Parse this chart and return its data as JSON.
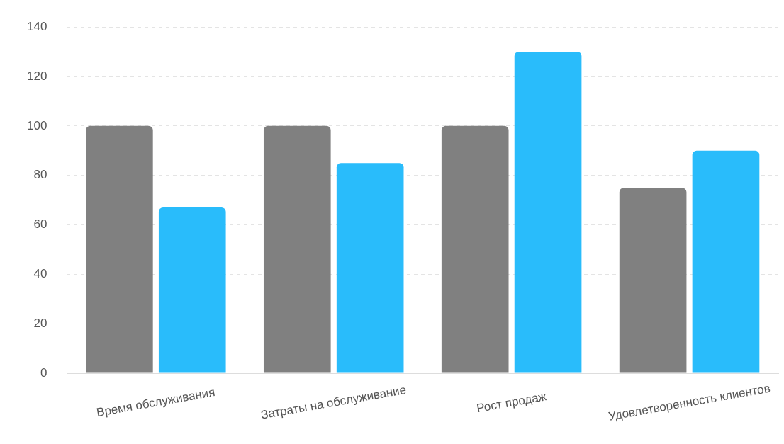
{
  "chart_data": {
    "type": "bar",
    "categories": [
      "Время обслуживания",
      "Затраты на обслуживание",
      "Рост продаж",
      "Удовлетворенность клиентов"
    ],
    "series": [
      {
        "color": "#808080",
        "values": [
          100,
          100,
          100,
          75
        ]
      },
      {
        "color": "#29bcfb",
        "values": [
          67,
          85,
          130,
          90
        ]
      }
    ],
    "ylim": [
      0,
      140
    ],
    "yticks": [
      0,
      20,
      40,
      60,
      80,
      100,
      120,
      140
    ],
    "grid": "y",
    "legend": false
  }
}
